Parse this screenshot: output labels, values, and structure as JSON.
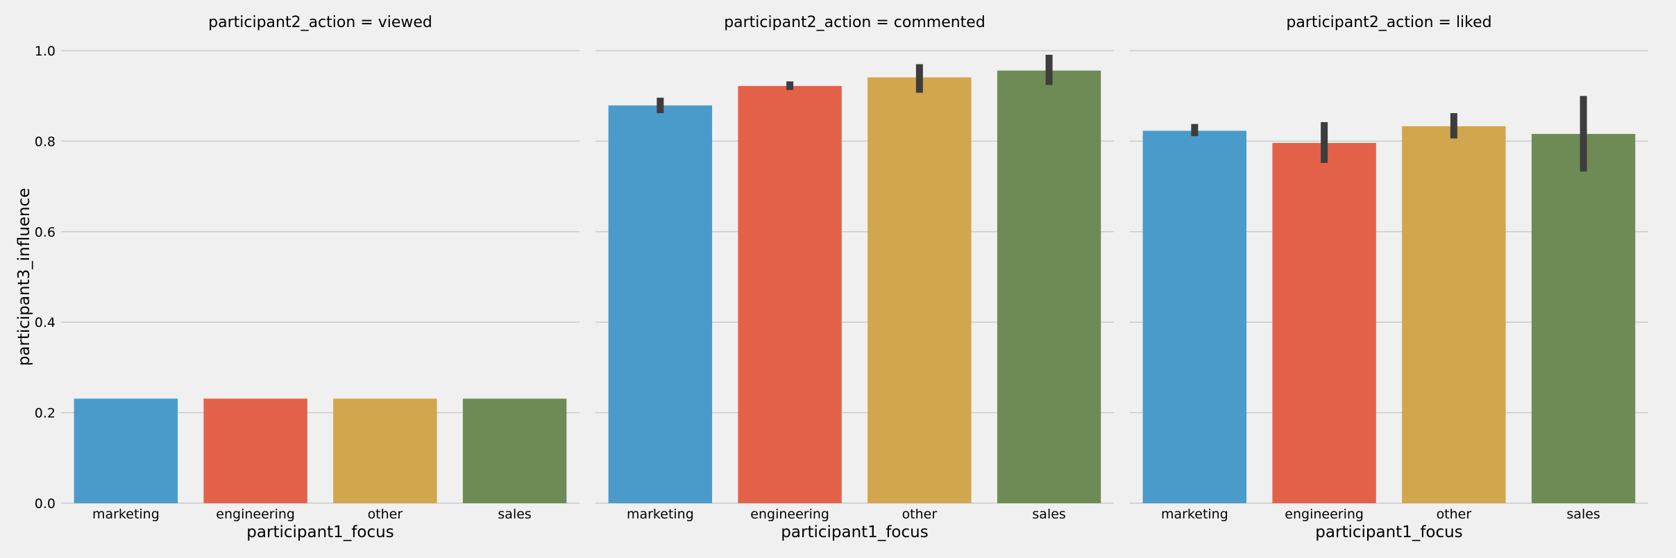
{
  "chart_data": {
    "type": "bar",
    "ylabel": "participant3_influence",
    "ylim": [
      0,
      1.0
    ],
    "yticks": [
      0.0,
      0.2,
      0.4,
      0.6,
      0.8,
      1.0
    ],
    "grid": "horizontal",
    "sharey": true,
    "colors": [
      "#4a9bc9",
      "#e46149",
      "#d1a64c",
      "#6e8b56"
    ],
    "error_bar_color": "#3d3d3d",
    "facets": [
      {
        "title": "participant2_action = viewed",
        "xlabel": "participant1_focus",
        "categories": [
          "marketing",
          "engineering",
          "other",
          "sales"
        ],
        "values": [
          0.231,
          0.231,
          0.231,
          0.231
        ],
        "ci": [
          [
            0.231,
            0.231
          ],
          [
            0.231,
            0.231
          ],
          [
            0.231,
            0.231
          ],
          [
            0.231,
            0.231
          ]
        ]
      },
      {
        "title": "participant2_action = commented",
        "xlabel": "participant1_focus",
        "categories": [
          "marketing",
          "engineering",
          "other",
          "sales"
        ],
        "values": [
          0.879,
          0.922,
          0.941,
          0.956
        ],
        "ci": [
          [
            0.862,
            0.896
          ],
          [
            0.913,
            0.932
          ],
          [
            0.907,
            0.97
          ],
          [
            0.924,
            0.991
          ]
        ]
      },
      {
        "title": "participant2_action = liked",
        "xlabel": "participant1_focus",
        "categories": [
          "marketing",
          "engineering",
          "other",
          "sales"
        ],
        "values": [
          0.823,
          0.796,
          0.833,
          0.816
        ],
        "ci": [
          [
            0.811,
            0.838
          ],
          [
            0.752,
            0.842
          ],
          [
            0.806,
            0.862
          ],
          [
            0.733,
            0.9
          ]
        ]
      }
    ]
  }
}
